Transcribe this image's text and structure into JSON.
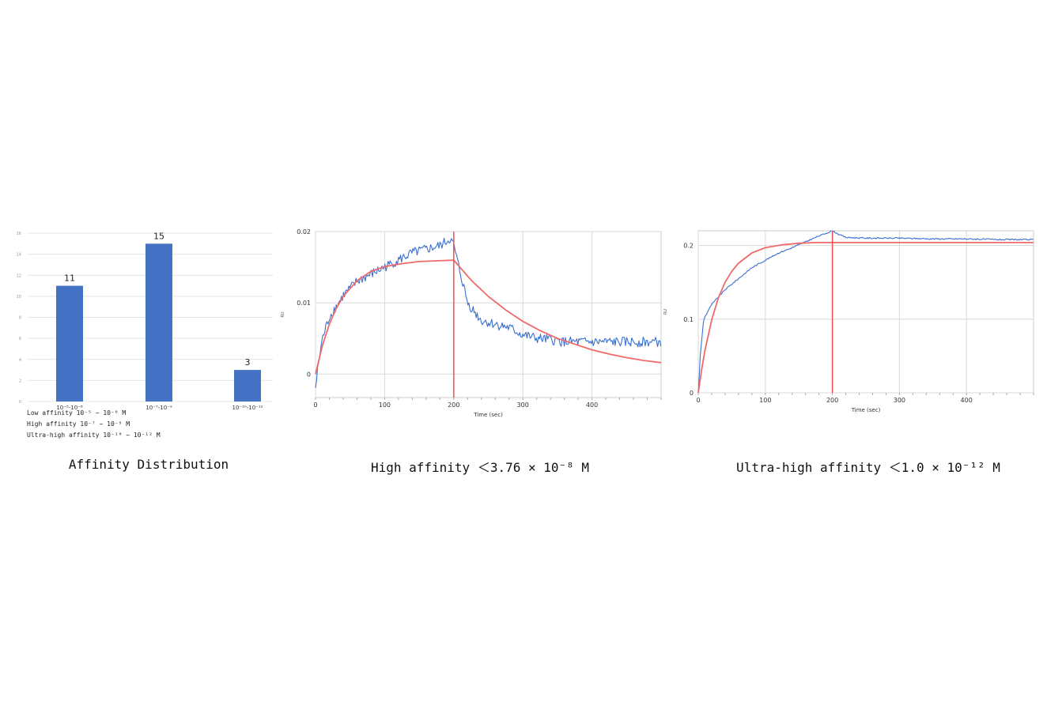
{
  "captions": {
    "bar": "Affinity Distribution",
    "high": "High affinity ＜3.76 × 10⁻⁸ M",
    "ultra": "Ultra-high affinity ＜1.0 × 10⁻¹² M"
  },
  "colors": {
    "bar": "#4472c4",
    "data": "#3a6fd0",
    "fit": "#f06a6a",
    "vline": "#f05050",
    "grid": "#d8d8d8"
  },
  "chart_data": [
    {
      "type": "bar",
      "categories": [
        "10⁻⁵-10⁻⁶",
        "10⁻⁷-10⁻⁹",
        "10⁻¹⁰-10⁻¹²"
      ],
      "values": [
        11,
        15,
        3
      ],
      "ylim": [
        0,
        16
      ],
      "yticks": [
        0,
        2,
        4,
        6,
        8,
        10,
        12,
        14,
        16
      ],
      "grid": true,
      "notes": [
        "Low affinity 10⁻⁵ ~ 10⁻⁶ M",
        "High affinity 10⁻⁷ ~ 10⁻⁹ M",
        "Ultra-high affinity 10⁻¹⁰ ~ 10⁻¹² M"
      ]
    },
    {
      "type": "line",
      "xlabel": "Time (sec)",
      "ylabel": "RU",
      "xlim": [
        0,
        500
      ],
      "ylim": [
        -0.0033,
        0.02
      ],
      "xticks": [
        0,
        100,
        200,
        300,
        400
      ],
      "yticks": [
        0,
        0.01,
        0.02
      ],
      "ytick_labels": [
        "0",
        "0.01",
        "0.02"
      ],
      "grid": true,
      "vline_x": 200,
      "series": [
        {
          "role": "data",
          "x": [
            0,
            5,
            10,
            20,
            30,
            40,
            60,
            80,
            100,
            120,
            140,
            160,
            180,
            195,
            200,
            210,
            220,
            240,
            260,
            280,
            300,
            320,
            340,
            360,
            380,
            400,
            420,
            440,
            460,
            480,
            500
          ],
          "y": [
            -0.002,
            0.002,
            0.005,
            0.008,
            0.0095,
            0.011,
            0.013,
            0.014,
            0.015,
            0.016,
            0.017,
            0.0175,
            0.018,
            0.019,
            0.018,
            0.014,
            0.01,
            0.0075,
            0.007,
            0.0065,
            0.0055,
            0.005,
            0.0048,
            0.0045,
            0.0045,
            0.0045,
            0.0045,
            0.0045,
            0.0045,
            0.0045,
            0.0045
          ]
        },
        {
          "role": "fit",
          "x": [
            0,
            10,
            20,
            30,
            40,
            60,
            80,
            100,
            125,
            150,
            175,
            200,
            225,
            250,
            275,
            300,
            325,
            350,
            375,
            400,
            425,
            450,
            475,
            500
          ],
          "y": [
            0,
            0.004,
            0.007,
            0.0092,
            0.0109,
            0.0131,
            0.0144,
            0.0151,
            0.0155,
            0.0158,
            0.0159,
            0.016,
            0.0132,
            0.0109,
            0.009,
            0.0074,
            0.0061,
            0.005,
            0.0042,
            0.0034,
            0.0028,
            0.0023,
            0.0019,
            0.0016
          ]
        }
      ]
    },
    {
      "type": "line",
      "xlabel": "Time (sec)",
      "ylabel": "RU",
      "xlim": [
        0,
        500
      ],
      "ylim": [
        0,
        0.22
      ],
      "xticks": [
        0,
        100,
        200,
        300,
        400
      ],
      "yticks": [
        0,
        0.1,
        0.2
      ],
      "ytick_labels": [
        "0",
        "0.1",
        "0.2"
      ],
      "grid": true,
      "vline_x": 200,
      "series": [
        {
          "role": "data",
          "x": [
            0,
            3,
            8,
            20,
            40,
            60,
            80,
            100,
            120,
            140,
            160,
            180,
            200,
            210,
            220,
            250,
            300,
            350,
            400,
            450,
            500
          ],
          "y": [
            0,
            0.05,
            0.1,
            0.12,
            0.14,
            0.155,
            0.17,
            0.18,
            0.19,
            0.197,
            0.205,
            0.213,
            0.22,
            0.215,
            0.211,
            0.21,
            0.21,
            0.209,
            0.209,
            0.208,
            0.208
          ]
        },
        {
          "role": "fit",
          "x": [
            0,
            5,
            10,
            20,
            30,
            40,
            50,
            60,
            80,
            100,
            125,
            150,
            175,
            200,
            300,
            400,
            500
          ],
          "y": [
            0,
            0.031,
            0.058,
            0.099,
            0.129,
            0.15,
            0.165,
            0.176,
            0.19,
            0.197,
            0.201,
            0.203,
            0.204,
            0.204,
            0.204,
            0.204,
            0.204
          ]
        }
      ]
    }
  ]
}
